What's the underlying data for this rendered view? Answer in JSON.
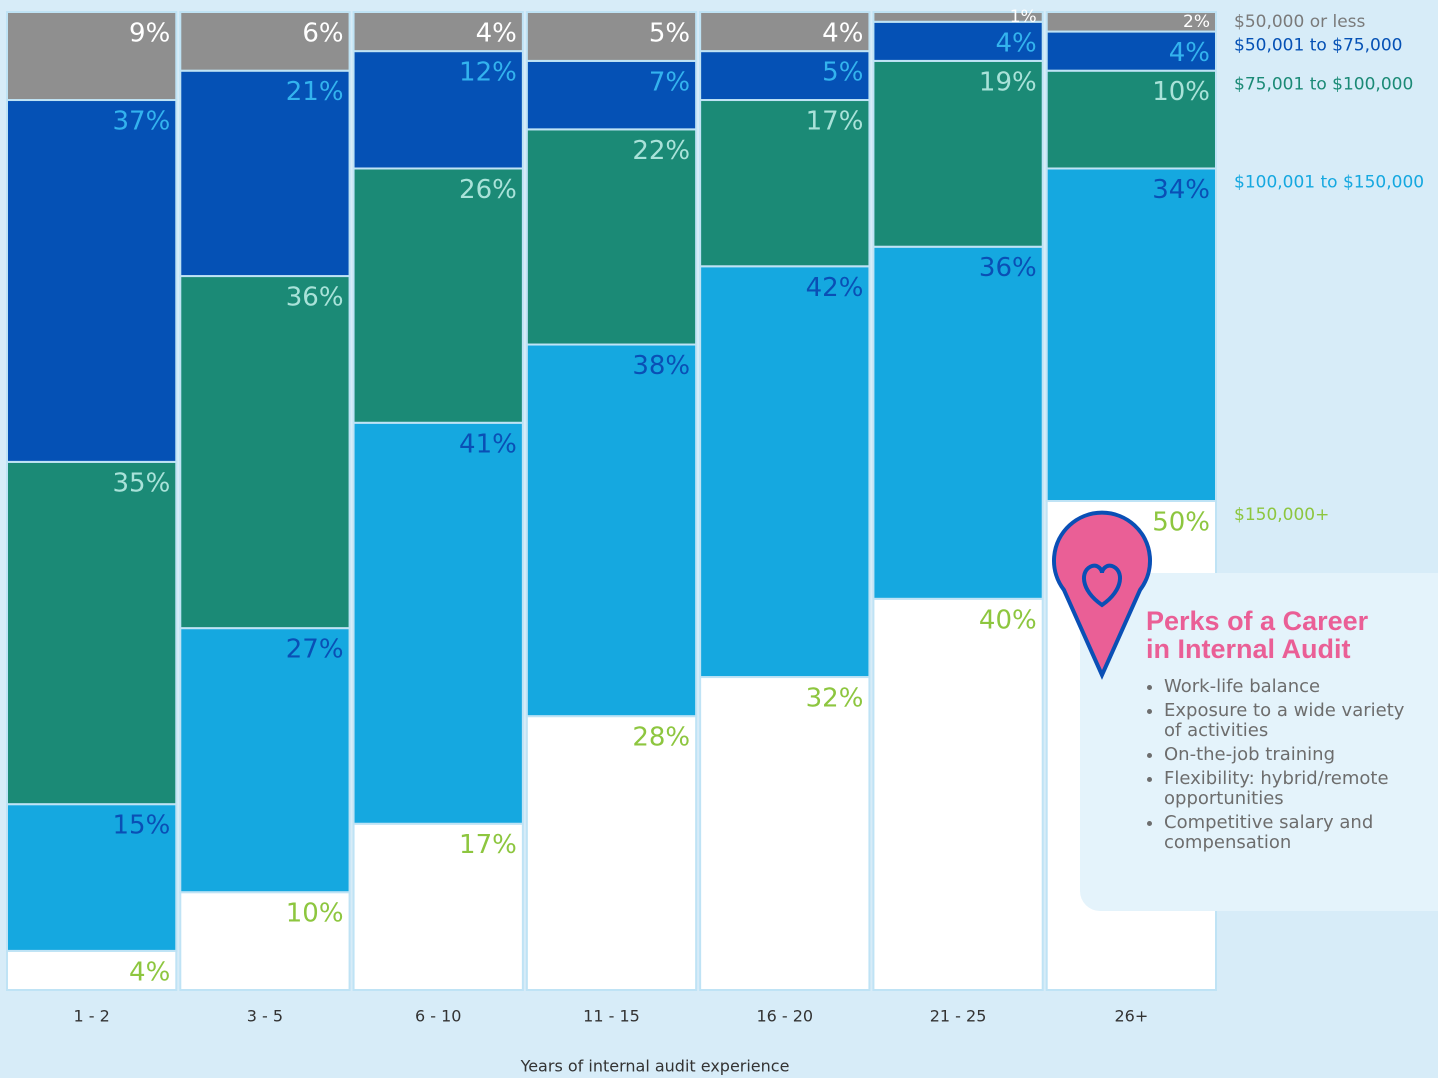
{
  "chart_data": {
    "type": "bar",
    "stacked": true,
    "x_label": "Years of internal audit experience",
    "categories": [
      "1 - 2",
      "3 - 5",
      "6 - 10",
      "11 - 15",
      "16 - 20",
      "21 - 25",
      "26+"
    ],
    "ylim": [
      0,
      100
    ],
    "series": [
      {
        "name": "$150,000+",
        "color": "#ffffff",
        "label_color": "#8dc63f",
        "legend_color": "#8dc63f",
        "values": [
          4,
          10,
          17,
          28,
          32,
          40,
          50
        ],
        "value_labels": [
          "4%",
          "10%",
          "17%",
          "28%",
          "32%",
          "40%",
          "50%"
        ]
      },
      {
        "name": "$100,001 to $150,000",
        "color": "#15a8e0",
        "label_color": "#0a4fb5",
        "legend_color": "#15a8e0",
        "values": [
          15,
          27,
          41,
          38,
          42,
          36,
          34
        ],
        "value_labels": [
          "15%",
          "27%",
          "41%",
          "38%",
          "42%",
          "36%",
          "34%"
        ]
      },
      {
        "name": "$75,001 to $100,000",
        "color": "#1b8a76",
        "label_color": "#a9e2d9",
        "legend_color": "#1b8a76",
        "values": [
          35,
          36,
          26,
          22,
          17,
          19,
          10
        ],
        "value_labels": [
          "35%",
          "36%",
          "26%",
          "22%",
          "17%",
          "19%",
          "10%"
        ]
      },
      {
        "name": "$50,001 to $75,000",
        "color": "#0551b5",
        "label_color": "#33b3ee",
        "legend_color": "#0551b5",
        "values": [
          37,
          21,
          12,
          7,
          5,
          4,
          4
        ],
        "value_labels": [
          "37%",
          "21%",
          "12%",
          "7%",
          "5%",
          "4%",
          "4%"
        ]
      },
      {
        "name": "$50,000 or less",
        "color": "#8f8f8f",
        "label_color": "#ffffff",
        "legend_color": "#7a7a7a",
        "values": [
          9,
          6,
          4,
          5,
          4,
          1,
          2
        ],
        "value_labels": [
          "9%",
          "6%",
          "4%",
          "5%",
          "4%",
          "1%",
          "2%"
        ]
      }
    ]
  },
  "panel": {
    "title": [
      "Perks of a Career",
      "in Internal Audit"
    ],
    "items": [
      "Work-life balance",
      "Exposure to a wide variety of activities",
      "On-the-job training",
      "Flexibility: hybrid/remote opportunities",
      "Competitive salary and compensation"
    ]
  }
}
